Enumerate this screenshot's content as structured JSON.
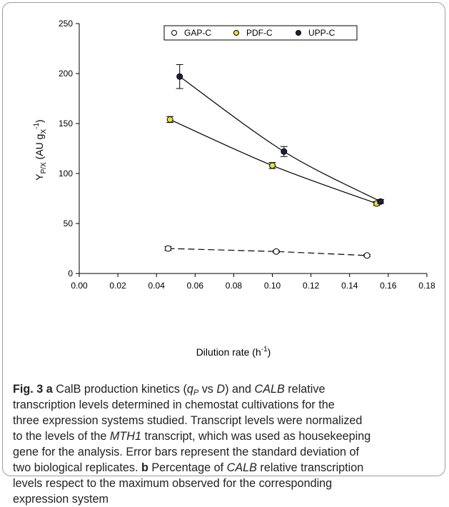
{
  "chart_data": {
    "type": "scatter",
    "title": "",
    "xlabel": "Dilution rate (h⁻¹)",
    "ylabel": "Y_P/X (AU g_X⁻¹)",
    "xlim": [
      0.0,
      0.18
    ],
    "ylim": [
      0,
      250
    ],
    "x_ticks": [
      "0.00",
      "0.02",
      "0.04",
      "0.06",
      "0.08",
      "0.10",
      "0.12",
      "0.14",
      "0.16",
      "0.18"
    ],
    "y_ticks": [
      "0",
      "50",
      "100",
      "150",
      "200",
      "250"
    ],
    "grid": false,
    "legend_position": "top",
    "series": [
      {
        "name": "GAP-C",
        "marker": "open-circle",
        "color": "#ffffff",
        "line": "dashed",
        "x": [
          0.046,
          0.102,
          0.149
        ],
        "y": [
          25,
          22,
          18
        ],
        "error": [
          2,
          1,
          1
        ]
      },
      {
        "name": "PDF-C",
        "marker": "filled-circle",
        "color": "#e8e13a",
        "line": "solid",
        "x": [
          0.047,
          0.1,
          0.154
        ],
        "y": [
          154,
          108,
          70
        ],
        "error": [
          3,
          3,
          2
        ]
      },
      {
        "name": "UPP-C",
        "marker": "filled-circle",
        "color": "#1c2040",
        "line": "solid",
        "x": [
          0.052,
          0.106,
          0.156
        ],
        "y": [
          197,
          122,
          72
        ],
        "error": [
          12,
          5,
          2
        ]
      }
    ]
  },
  "caption": {
    "fig_label": "Fig. 3",
    "panel_a": "a",
    "line1_rest": " CalB production kinetics (",
    "qp_q": "q",
    "qp_sub": "P",
    "line1_vs": " vs ",
    "line1_d": "D",
    "line1_and": ") and ",
    "calb1": "CALB",
    "line1_end": " relative",
    "line2": "transcription levels determined in chemostat cultivations for the",
    "line3": "three expression systems studied. Transcript levels were normalized",
    "line4_pre": "to the levels of the ",
    "mth1": "MTH1",
    "line4_post": " transcript, which was used as housekeeping",
    "line5": "gene for the analysis. Error bars represent the standard deviation of",
    "line6_pre": "two biological replicates. ",
    "panel_b": "b",
    "line6_mid": " Percentage of ",
    "calb2": "CALB",
    "line6_post": " relative transcription",
    "line7": "levels respect to the maximum observed for the corresponding",
    "line8": "expression system"
  }
}
